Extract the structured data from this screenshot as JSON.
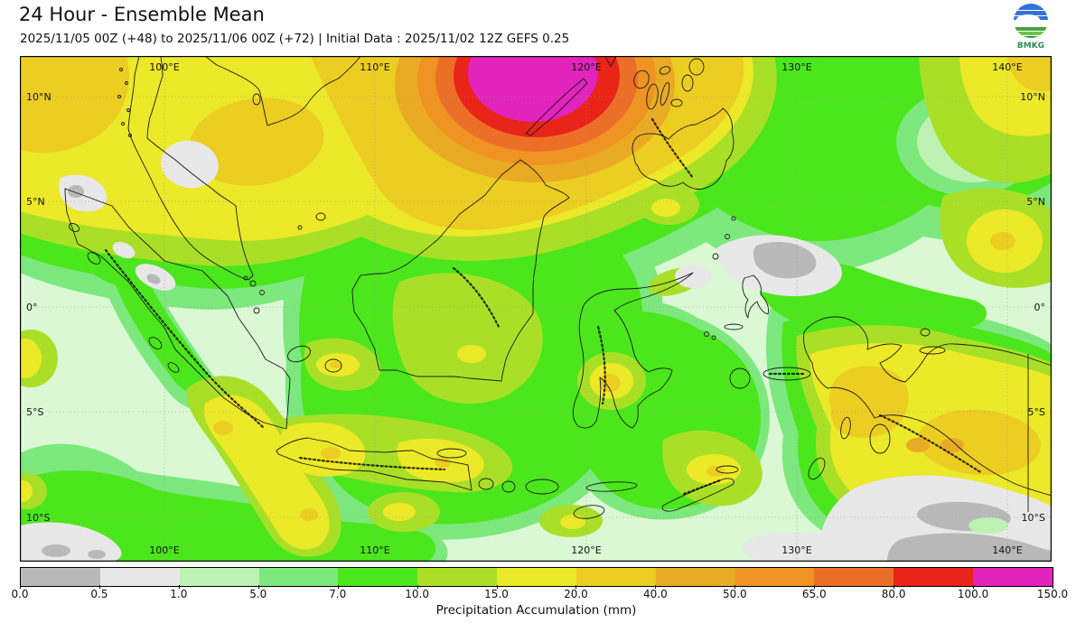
{
  "header": {
    "title": "24 Hour - Ensemble Mean",
    "subtitle": "2025/11/05 00Z (+48) to 2025/11/06 00Z (+72) | Initial Data : 2025/11/02 12Z GEFS 0.25",
    "logo_text": "BMKG"
  },
  "map": {
    "top_lon_labels": [
      "100°E",
      "110°E",
      "120°E",
      "130°E",
      "140°E"
    ],
    "bottom_lon_labels": [
      "100°E",
      "110°E",
      "120°E",
      "130°E",
      "140°E"
    ],
    "left_lat_labels": [
      "10°N",
      "5°N",
      "0°",
      "5°S",
      "10°S"
    ],
    "right_lat_labels": [
      "10°N",
      "5°N",
      "0°",
      "5°S",
      "10°S"
    ],
    "colors": {
      "coastline": "#1a1a1a",
      "gridline": "#999999",
      "frame": "#000000"
    }
  },
  "colorbar": {
    "title": "Precipitation Accumulation (mm)",
    "tick_labels": [
      "0.0",
      "0.5",
      "1.0",
      "5.0",
      "7.0",
      "10.0",
      "15.0",
      "20.0",
      "40.0",
      "50.0",
      "65.0",
      "80.0",
      "100.0",
      "150.0"
    ],
    "levels": [
      0.0,
      0.5,
      1.0,
      5.0,
      7.0,
      10.0,
      15.0,
      20.0,
      40.0,
      50.0,
      65.0,
      80.0,
      100.0,
      150.0
    ],
    "colors": [
      "#b9b9b9",
      "#e8e8e8",
      "#bdf2b3",
      "#7de87d",
      "#4ce61c",
      "#a9e027",
      "#ece928",
      "#eccd22",
      "#e9ab23",
      "#ef9322",
      "#ec6f28",
      "#e92418",
      "#e223bc"
    ],
    "units": "mm"
  },
  "logo_colors": {
    "blue": "#3273d8",
    "green_dark": "#2e8b3a",
    "green_mid": "#45a33c",
    "green_light": "#6cc24a",
    "text": "#2e8b57"
  }
}
